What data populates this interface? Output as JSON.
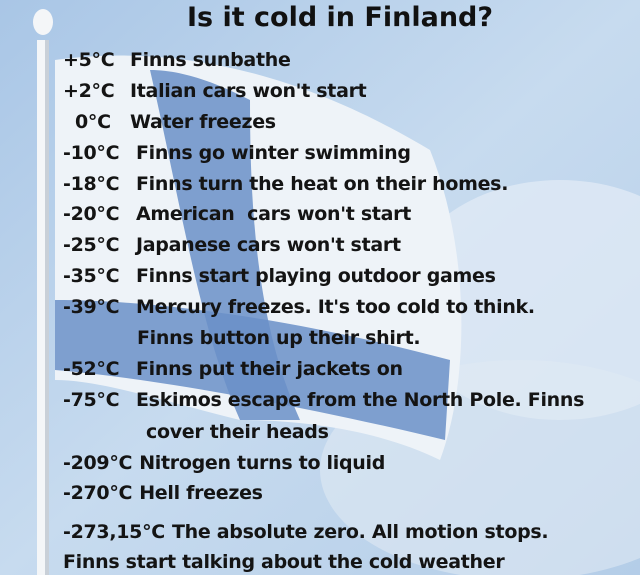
{
  "title": "Is it cold in Finland?",
  "colors": {
    "sky": "#b9d2ec",
    "flag_white": "#eef3f8",
    "flag_blue": "#5f86c4",
    "text": "#141414"
  },
  "entries": [
    {
      "temp": "+5°C",
      "text": "Finns sunbathe"
    },
    {
      "temp": "+2°C",
      "text": "Italian cars won't start"
    },
    {
      "temp": "0°C",
      "text": "Water freezes"
    },
    {
      "temp": "-10°C",
      "text": "Finns go winter swimming"
    },
    {
      "temp": "-18°C",
      "text": "Finns turn the heat on their homes."
    },
    {
      "temp": "-20°C",
      "text": "American  cars won't start"
    },
    {
      "temp": "-25°C",
      "text": "Japanese cars won't start"
    },
    {
      "temp": "-35°C",
      "text": "Finns start playing outdoor games"
    },
    {
      "temp": "-39°C",
      "text": "Mercury freezes. It's too cold to think.",
      "cont": "Finns button up their shirt."
    },
    {
      "temp": "-52°C",
      "text": "Finns put their jackets on"
    },
    {
      "temp": "-75°C",
      "text": "Eskimos escape from the North Pole. Finns",
      "cont": "cover their heads"
    },
    {
      "temp": "-209°C",
      "text": "Nitrogen turns to liquid"
    },
    {
      "temp": "-270°C",
      "text": "Hell freezes"
    },
    {
      "temp": "-273,15°C",
      "text": "The absolute zero. All motion stops.",
      "cont": "Finns start talking about the cold weather"
    }
  ]
}
